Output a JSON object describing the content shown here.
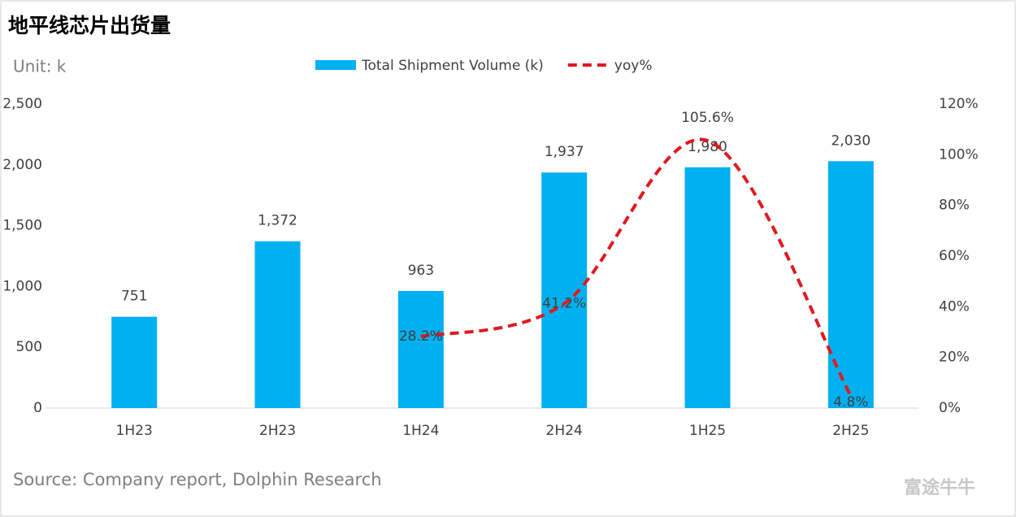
{
  "chart_data": {
    "type": "bar-line",
    "title": "地平线芯片出货量",
    "unit_label": "Unit: k",
    "source": "Source: Company report, Dolphin Research",
    "brand": "富途牛牛",
    "categories": [
      "1H23",
      "2H23",
      "1H24",
      "2H24",
      "1H25",
      "2H25"
    ],
    "series": [
      {
        "name": "Total Shipment Volume (k)",
        "type": "bar",
        "color": "#00b0f0",
        "values": [
          751,
          1372,
          963,
          1937,
          1980,
          2030
        ],
        "value_labels": [
          "751",
          "1,372",
          "963",
          "1,937",
          "1,980",
          "2,030"
        ]
      },
      {
        "name": "yoy%",
        "type": "line",
        "axis": "y2",
        "color": "#e0191f",
        "dashed": true,
        "smooth": true,
        "values": [
          null,
          null,
          28.2,
          41.2,
          105.6,
          4.8
        ],
        "value_labels": [
          null,
          null,
          "28.2%",
          "41.2%",
          "105.6%",
          "4.8%"
        ]
      }
    ],
    "ylim": [
      0,
      2500
    ],
    "yticks": [
      0,
      500,
      {
        "value": 1000,
        "label": "1,000"
      },
      {
        "value": 1500,
        "label": "1,500"
      },
      {
        "value": 2000,
        "label": "2,000"
      },
      {
        "value": 2500,
        "label": "2,500"
      }
    ],
    "y2lim": [
      0,
      120
    ],
    "y2ticks": [
      {
        "value": 0,
        "label": "0%"
      },
      {
        "value": 20,
        "label": "20%"
      },
      {
        "value": 40,
        "label": "40%"
      },
      {
        "value": 60,
        "label": "60%"
      },
      {
        "value": 80,
        "label": "80%"
      },
      {
        "value": 100,
        "label": "100%"
      },
      {
        "value": 120,
        "label": "120%"
      }
    ],
    "grid": false,
    "legend": "top"
  }
}
